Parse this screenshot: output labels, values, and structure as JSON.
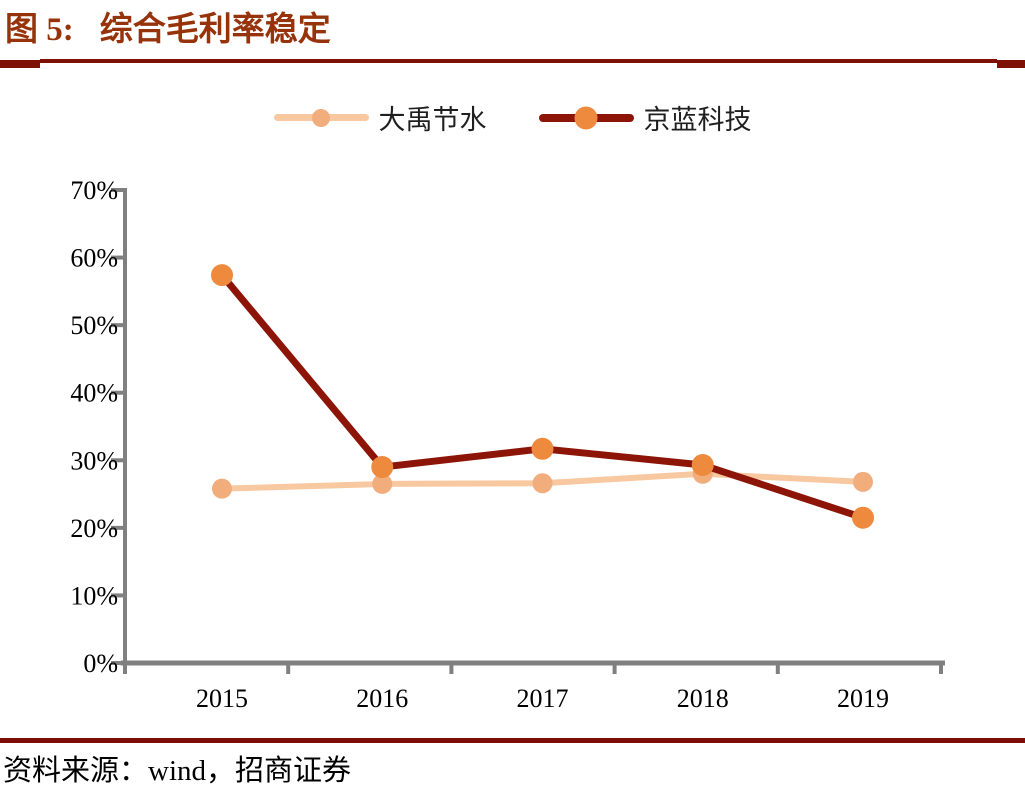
{
  "header": {
    "figure_label": "图 5:",
    "title": "综合毛利率稳定"
  },
  "legend": [
    {
      "name": "大禹节水",
      "line_color": "#F8C8A0",
      "marker_color": "#F2AD7D",
      "line_height": 7,
      "marker_size": 18
    },
    {
      "name": "京蓝科技",
      "line_color": "#8D1507",
      "marker_color": "#EE8A3D",
      "line_height": 8,
      "marker_size": 23
    }
  ],
  "source": {
    "label": "资料来源：",
    "text": "wind，招商证券"
  },
  "chart_data": {
    "type": "line",
    "title": "综合毛利率稳定",
    "categories": [
      "2015",
      "2016",
      "2017",
      "2018",
      "2019"
    ],
    "series": [
      {
        "name": "大禹节水",
        "values": [
          25.8,
          26.5,
          26.6,
          28.0,
          26.8
        ],
        "line_color": "#F8C8A0",
        "marker_color": "#F2AD7D",
        "line_width": 6,
        "marker_radius": 10
      },
      {
        "name": "京蓝科技",
        "values": [
          57.4,
          29.0,
          31.7,
          29.3,
          21.5
        ],
        "line_color": "#8D1507",
        "marker_color": "#EE8A3D",
        "line_width": 7,
        "marker_radius": 11
      }
    ],
    "xlabel": "",
    "ylabel": "",
    "ylim": [
      0,
      70
    ],
    "ytick_step": 10,
    "yticks": [
      "0%",
      "10%",
      "20%",
      "30%",
      "40%",
      "50%",
      "60%",
      "70%"
    ],
    "ytick_format": "percent",
    "grid": false,
    "legend_position": "top-center",
    "axis_color": "#808080",
    "label_color": "#000000"
  }
}
